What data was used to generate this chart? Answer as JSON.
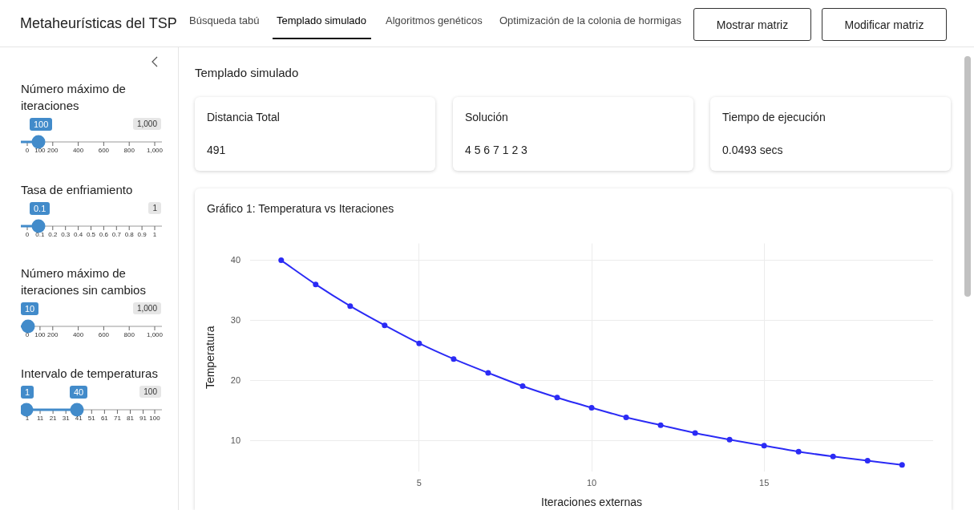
{
  "chart_data": [
    {
      "type": "other",
      "title": "Metaheurísticas del TSP",
      "annotations": [
        "Búsqueda tabú",
        "Templado simulado",
        "Algoritmos genéticos",
        "Optimización de la colonia de hormigas",
        "Mostrar matriz",
        "Modificar matriz",
        "Número máximo de iteraciones",
        "100",
        "1,000",
        "0",
        "100",
        "200",
        "400",
        "600",
        "800",
        "1,000",
        "Tasa de enfriamiento",
        "0.1",
        "1",
        "0",
        "0.1",
        "0.2",
        "0.3",
        "0.4",
        "0.5",
        "0.6",
        "0.7",
        "0.8",
        "0.9",
        "1",
        "Número máximo de iteraciones sin cambios",
        "10",
        "1,000",
        "0",
        "100",
        "200",
        "400",
        "600",
        "800",
        "1,000",
        "Intervalo de temperaturas",
        "1",
        "40",
        "100",
        "1",
        "11",
        "21",
        "31",
        "41",
        "51",
        "61",
        "71",
        "81",
        "91",
        "100",
        "Templado simulado",
        "Distancia Total",
        "491",
        "Solución",
        "4 5 6 7 1 2 3",
        "Tiempo de ejecución",
        "0.0493 secs"
      ]
    },
    {
      "type": "line",
      "title": "Gráfico 1: Temperatura vs Iteraciones",
      "xlabel": "Iteraciones externas",
      "ylabel": "Temperatura",
      "x": [
        1,
        2,
        3,
        4,
        5,
        6,
        7,
        8,
        9,
        10,
        11,
        12,
        13,
        14,
        15,
        16,
        17,
        18,
        19
      ],
      "series": [
        {
          "color": "#2b2bf5",
          "values": [
            40,
            36,
            32.4,
            29.2,
            26.2,
            23.6,
            21.3,
            19.1,
            17.2,
            15.5,
            13.9,
            12.6,
            11.3,
            10.2,
            9.2,
            8.2,
            7.4,
            6.7,
            6.0
          ]
        }
      ],
      "xlim": [
        0.1,
        19.9
      ],
      "ylim": [
        4.9,
        42.8
      ],
      "xticks": [
        5,
        10,
        15
      ],
      "yticks": [
        10,
        20,
        30,
        40
      ],
      "grid": true,
      "marker": "circle",
      "line_style": "solid"
    }
  ]
}
